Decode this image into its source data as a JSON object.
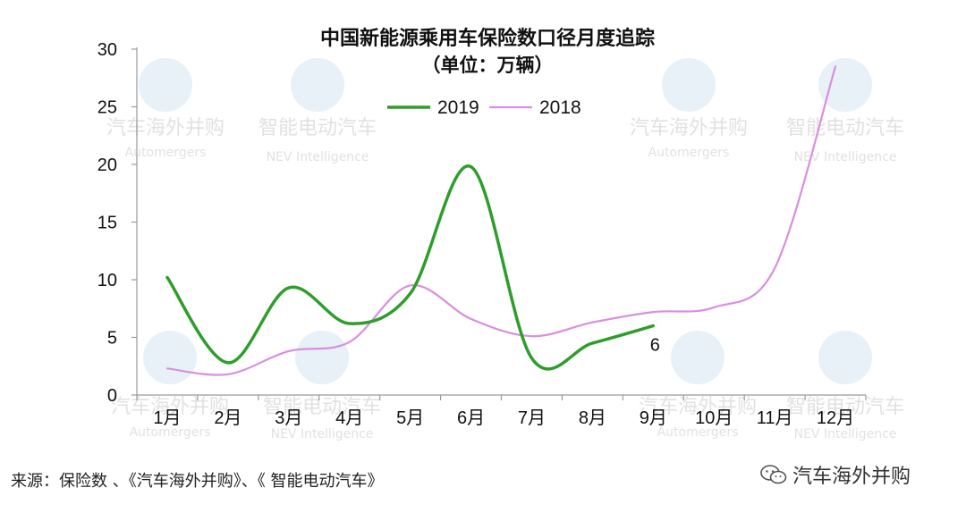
{
  "chart_data": {
    "type": "line",
    "title": "中国新能源乘用车保险数口径月度追踪",
    "subtitle": "（单位：万辆）",
    "categories": [
      "1月",
      "2月",
      "3月",
      "4月",
      "5月",
      "6月",
      "7月",
      "8月",
      "9月",
      "10月",
      "11月",
      "12月"
    ],
    "series": [
      {
        "name": "2019",
        "color": "#2e9e2a",
        "values": [
          10.2,
          2.8,
          9.3,
          6.2,
          8.8,
          19.8,
          3.2,
          4.5,
          6.0,
          null,
          null,
          null
        ]
      },
      {
        "name": "2018",
        "color": "#d98ee0",
        "values": [
          2.3,
          1.8,
          3.8,
          4.6,
          9.5,
          6.6,
          5.1,
          6.3,
          7.2,
          7.6,
          11.0,
          28.5
        ]
      }
    ],
    "annotations": [
      {
        "label": "6",
        "series": "2019",
        "category": "9月"
      }
    ],
    "ylim": [
      0,
      30
    ],
    "yticks": [
      0,
      5,
      10,
      15,
      20,
      25,
      30
    ],
    "legend": "top-center",
    "grid": false
  },
  "watermarks": {
    "cn_a": "汽车海外并购",
    "en_a": "Automergers",
    "cn_b": "智能电动汽车",
    "en_b": "NEV Intelligence"
  },
  "footer": {
    "source": "来源：保险数 、《汽车海外并购》、《 智能电动汽车》",
    "brand": "汽车海外并购",
    "brand_icon": "wechat-icon"
  }
}
